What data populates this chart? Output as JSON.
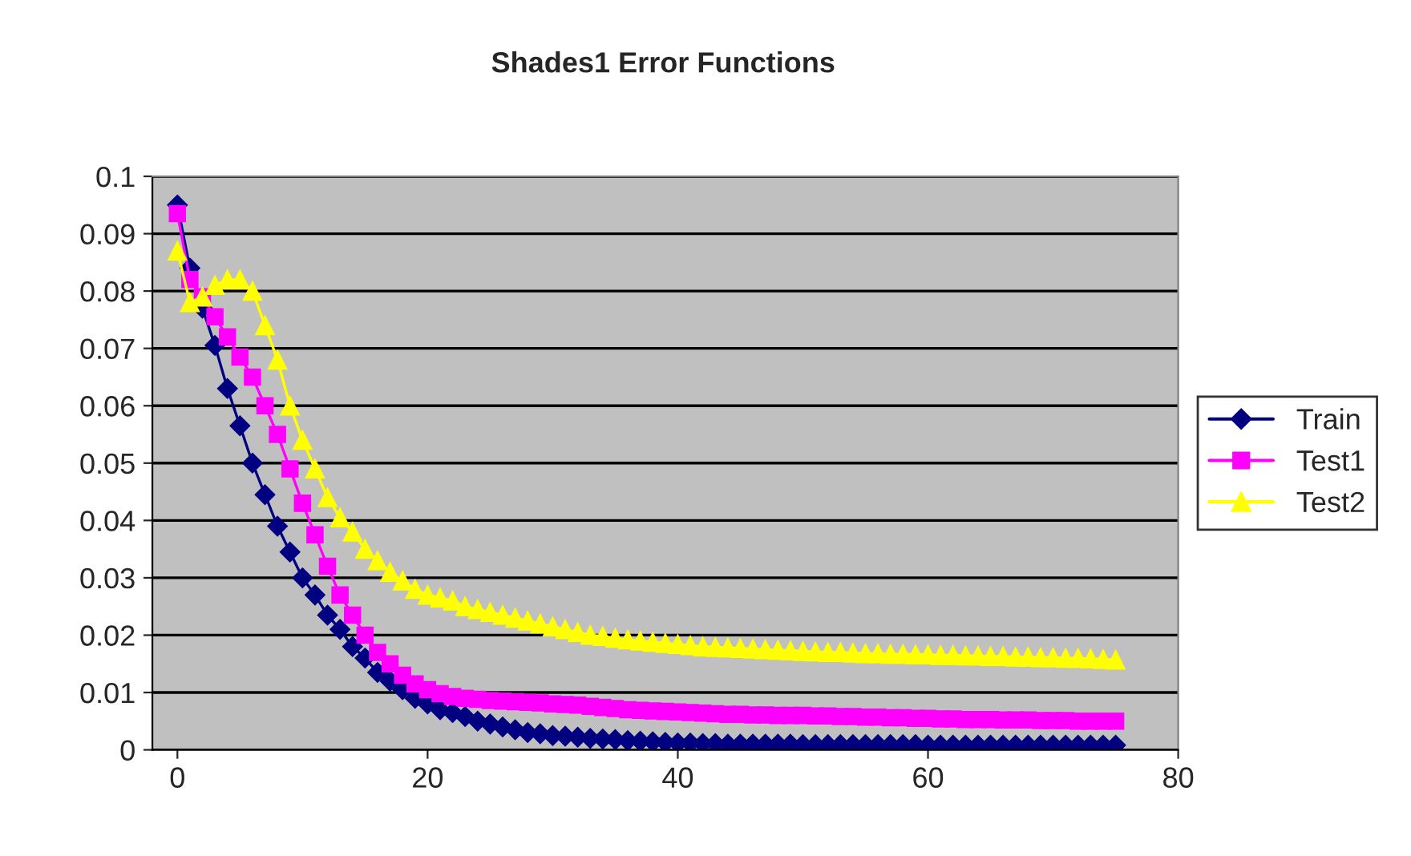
{
  "chart_data": {
    "type": "line",
    "title": "Shades1 Error Functions",
    "x": [
      0,
      1,
      2,
      3,
      4,
      5,
      6,
      7,
      8,
      9,
      10,
      11,
      12,
      13,
      14,
      15,
      16,
      17,
      18,
      19,
      20,
      21,
      22,
      23,
      24,
      25,
      26,
      27,
      28,
      29,
      30,
      31,
      32,
      33,
      34,
      35,
      36,
      37,
      38,
      39,
      40,
      41,
      42,
      43,
      44,
      45,
      46,
      47,
      48,
      49,
      50,
      51,
      52,
      53,
      54,
      55,
      56,
      57,
      58,
      59,
      60,
      61,
      62,
      63,
      64,
      65,
      66,
      67,
      68,
      69,
      70,
      71,
      72,
      73,
      74,
      75
    ],
    "series": [
      {
        "name": "Train",
        "color": "#000080",
        "marker": "diamond",
        "values": [
          0.095,
          0.084,
          0.077,
          0.0705,
          0.063,
          0.0565,
          0.05,
          0.0445,
          0.039,
          0.0345,
          0.03,
          0.027,
          0.0235,
          0.021,
          0.018,
          0.016,
          0.0135,
          0.012,
          0.0105,
          0.009,
          0.008,
          0.007,
          0.0065,
          0.0058,
          0.005,
          0.0045,
          0.004,
          0.0035,
          0.003,
          0.0028,
          0.0025,
          0.0024,
          0.0022,
          0.002,
          0.0019,
          0.0018,
          0.0016,
          0.0015,
          0.0014,
          0.0013,
          0.0012,
          0.0012,
          0.0011,
          0.0011,
          0.001,
          0.001,
          0.001,
          0.001,
          0.001,
          0.001,
          0.0009,
          0.0009,
          0.0009,
          0.0009,
          0.0009,
          0.0009,
          0.0009,
          0.0009,
          0.0009,
          0.0009,
          0.0008,
          0.0008,
          0.0008,
          0.0008,
          0.0008,
          0.0008,
          0.0008,
          0.0008,
          0.0008,
          0.0008,
          0.0008,
          0.0008,
          0.0008,
          0.0008,
          0.0008,
          0.0008
        ]
      },
      {
        "name": "Test1",
        "color": "#ff00ff",
        "marker": "square",
        "values": [
          0.0935,
          0.082,
          0.079,
          0.0755,
          0.072,
          0.0685,
          0.065,
          0.06,
          0.055,
          0.049,
          0.043,
          0.0375,
          0.032,
          0.027,
          0.0235,
          0.02,
          0.017,
          0.015,
          0.013,
          0.0115,
          0.0105,
          0.0098,
          0.0093,
          0.009,
          0.0088,
          0.0086,
          0.0085,
          0.0084,
          0.0083,
          0.0082,
          0.008,
          0.0079,
          0.0078,
          0.0076,
          0.0074,
          0.0072,
          0.007,
          0.0069,
          0.0068,
          0.0067,
          0.0066,
          0.0065,
          0.0064,
          0.0063,
          0.0062,
          0.0062,
          0.0061,
          0.0061,
          0.006,
          0.006,
          0.006,
          0.0059,
          0.0059,
          0.0058,
          0.0058,
          0.0057,
          0.0057,
          0.0056,
          0.0056,
          0.0055,
          0.0055,
          0.0054,
          0.0054,
          0.0053,
          0.0053,
          0.0053,
          0.0052,
          0.0052,
          0.0052,
          0.0051,
          0.0051,
          0.0051,
          0.005,
          0.005,
          0.005,
          0.005
        ]
      },
      {
        "name": "Test2",
        "color": "#ffff00",
        "marker": "triangle",
        "values": [
          0.087,
          0.078,
          0.079,
          0.081,
          0.082,
          0.082,
          0.08,
          0.074,
          0.068,
          0.06,
          0.054,
          0.049,
          0.044,
          0.0405,
          0.038,
          0.035,
          0.033,
          0.031,
          0.0295,
          0.028,
          0.027,
          0.0265,
          0.026,
          0.025,
          0.0245,
          0.024,
          0.0235,
          0.023,
          0.0225,
          0.022,
          0.0215,
          0.021,
          0.0205,
          0.02,
          0.0198,
          0.0195,
          0.0192,
          0.019,
          0.0188,
          0.0186,
          0.0184,
          0.0182,
          0.018,
          0.0179,
          0.0178,
          0.0177,
          0.0176,
          0.0175,
          0.0174,
          0.0173,
          0.0172,
          0.0171,
          0.017,
          0.017,
          0.0169,
          0.0168,
          0.0168,
          0.0167,
          0.0167,
          0.0166,
          0.0166,
          0.0165,
          0.0165,
          0.0164,
          0.0164,
          0.0163,
          0.0163,
          0.0162,
          0.0162,
          0.0161,
          0.0161,
          0.016,
          0.016,
          0.0159,
          0.0158,
          0.0157
        ]
      }
    ],
    "xlim": [
      -2,
      80
    ],
    "xticks": [
      0,
      20,
      40,
      60,
      80
    ],
    "ylim": [
      0,
      0.1
    ],
    "yticks": [
      0,
      0.01,
      0.02,
      0.03,
      0.04,
      0.05,
      0.06,
      0.07,
      0.08,
      0.09,
      0.1
    ],
    "grid": "y",
    "legend": "right",
    "line_style": "solid"
  }
}
